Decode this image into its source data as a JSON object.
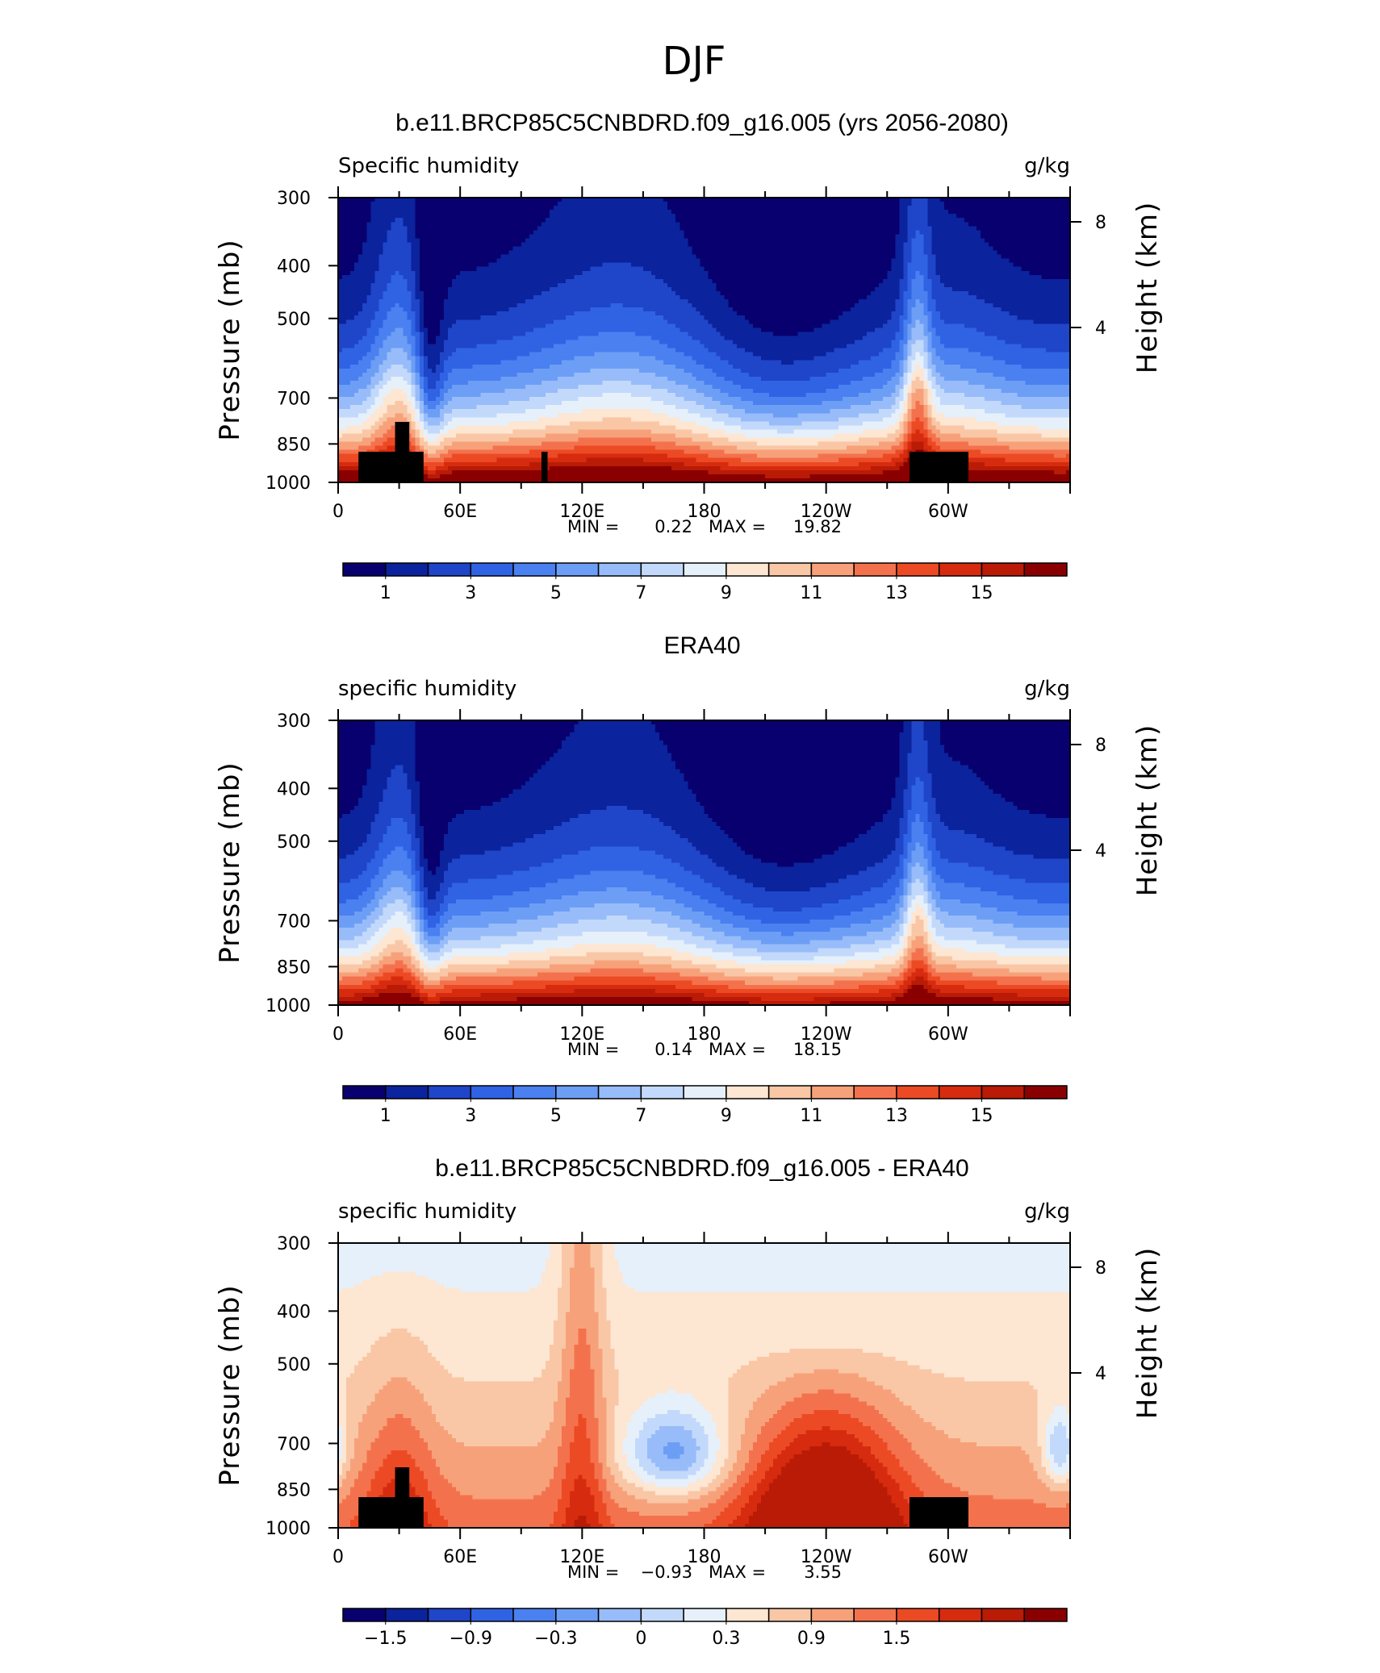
{
  "suptitle": "DJF",
  "colors": {
    "seq": [
      "#08006e",
      "#0b239c",
      "#1f45c9",
      "#2f63e4",
      "#4a80f0",
      "#6d9ef6",
      "#98bcf9",
      "#c2d9fb",
      "#e6f0fb",
      "#fde6d2",
      "#f9c7a6",
      "#f7a17a",
      "#f3724d",
      "#ec4a24",
      "#d62b0f",
      "#b91b06",
      "#8a0000"
    ],
    "diff": [
      "#08006e",
      "#0b239c",
      "#1f45c9",
      "#2f63e4",
      "#4a80f0",
      "#6d9ef6",
      "#98bcf9",
      "#c2d9fb",
      "#e6f0fb",
      "#fde6d2",
      "#f9c7a6",
      "#f7a17a",
      "#f3724d",
      "#ec4a24",
      "#d62b0f",
      "#b91b06",
      "#8a0000"
    ]
  },
  "chart_data": [
    {
      "type": "heatmap",
      "title": "b.e11.BRCP85C5CNBDRD.f09_g16.005 (yrs 2056-2080)",
      "left_label": "Specific humidity",
      "right_label": "g/kg",
      "ylabel": "Pressure (mb)",
      "y2label": "Height (km)",
      "xticks": [
        "0",
        "60E",
        "120E",
        "180",
        "120W",
        "60W"
      ],
      "yticks": [
        "300",
        "400",
        "500",
        "700",
        "850",
        "1000"
      ],
      "y2ticks": [
        "8",
        "4"
      ],
      "min_label": "MIN =",
      "min_value": "0.22",
      "max_label": "MAX =",
      "max_value": "19.82",
      "colorbar_labels": [
        "1",
        "3",
        "5",
        "7",
        "9",
        "11",
        "13",
        "15"
      ],
      "levels": [
        0,
        1,
        2,
        3,
        4,
        5,
        6,
        7,
        8,
        9,
        10,
        11,
        12,
        13,
        14,
        15,
        16
      ],
      "ylim": [
        1000,
        300
      ]
    },
    {
      "type": "heatmap",
      "title": "ERA40",
      "left_label": "specific humidity",
      "right_label": "g/kg",
      "ylabel": "Pressure (mb)",
      "y2label": "Height (km)",
      "xticks": [
        "0",
        "60E",
        "120E",
        "180",
        "120W",
        "60W"
      ],
      "yticks": [
        "300",
        "400",
        "500",
        "700",
        "850",
        "1000"
      ],
      "y2ticks": [
        "8",
        "4"
      ],
      "min_label": "MIN =",
      "min_value": "0.14",
      "max_label": "MAX =",
      "max_value": "18.15",
      "colorbar_labels": [
        "1",
        "3",
        "5",
        "7",
        "9",
        "11",
        "13",
        "15"
      ],
      "levels": [
        0,
        1,
        2,
        3,
        4,
        5,
        6,
        7,
        8,
        9,
        10,
        11,
        12,
        13,
        14,
        15,
        16
      ],
      "ylim": [
        1000,
        300
      ]
    },
    {
      "type": "heatmap",
      "title": "b.e11.BRCP85C5CNBDRD.f09_g16.005 - ERA40",
      "left_label": "specific humidity",
      "right_label": "g/kg",
      "ylabel": "Pressure (mb)",
      "y2label": "Height (km)",
      "xticks": [
        "0",
        "60E",
        "120E",
        "180",
        "120W",
        "60W"
      ],
      "yticks": [
        "300",
        "400",
        "500",
        "700",
        "850",
        "1000"
      ],
      "y2ticks": [
        "8",
        "4"
      ],
      "min_label": "MIN =",
      "min_value": "−0.93",
      "max_label": "MAX =",
      "max_value": "3.55",
      "colorbar_labels": [
        "−1.5",
        "−0.9",
        "−0.3",
        "0",
        "0.3",
        "0.9",
        "1.5"
      ],
      "levels": [
        -2.4,
        -2.1,
        -1.8,
        -1.5,
        -1.2,
        -0.9,
        -0.6,
        -0.3,
        0,
        0.3,
        0.6,
        0.9,
        1.2,
        1.5,
        1.8,
        2.1
      ],
      "ylim": [
        1000,
        300
      ]
    }
  ]
}
